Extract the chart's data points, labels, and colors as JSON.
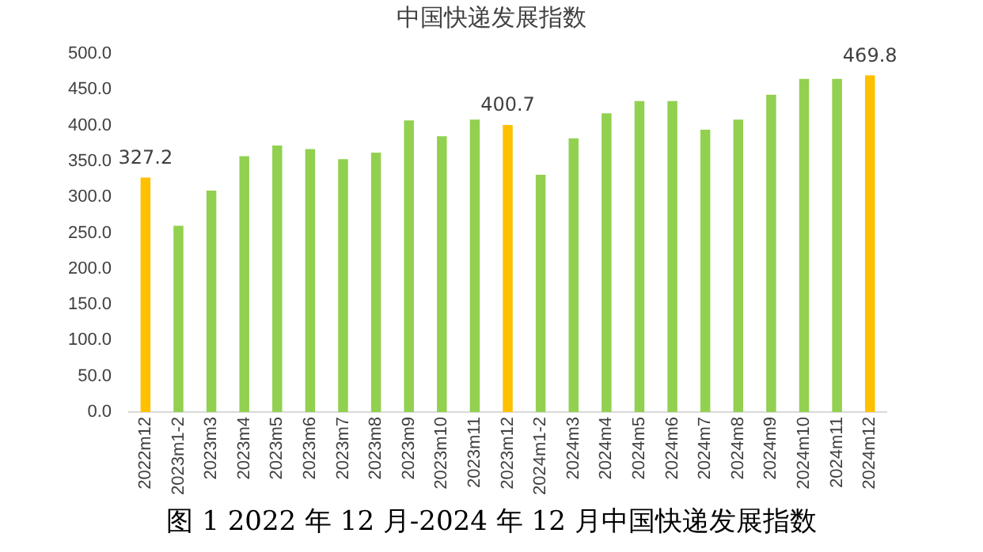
{
  "chart_data": {
    "type": "bar",
    "title": "中国快递发展指数",
    "categories": [
      "2022m12",
      "2023m1-2",
      "2023m3",
      "2023m4",
      "2023m5",
      "2023m6",
      "2023m7",
      "2023m8",
      "2023m9",
      "2023m10",
      "2023m11",
      "2023m12",
      "2024m1-2",
      "2024m3",
      "2024m4",
      "2024m5",
      "2024m6",
      "2024m7",
      "2024m8",
      "2024m9",
      "2024m10",
      "2024m11",
      "2024m12"
    ],
    "values": [
      327.2,
      260,
      309,
      357,
      372,
      367,
      353,
      362,
      407,
      385,
      408,
      400.7,
      331,
      382,
      417,
      434,
      434,
      394,
      408,
      443,
      465,
      465,
      469.8
    ],
    "colors": [
      "#ffc000",
      "#92d050",
      "#92d050",
      "#92d050",
      "#92d050",
      "#92d050",
      "#92d050",
      "#92d050",
      "#92d050",
      "#92d050",
      "#92d050",
      "#ffc000",
      "#92d050",
      "#92d050",
      "#92d050",
      "#92d050",
      "#92d050",
      "#92d050",
      "#92d050",
      "#92d050",
      "#92d050",
      "#92d050",
      "#ffc000"
    ],
    "value_labels": [
      "327.2",
      null,
      null,
      null,
      null,
      null,
      null,
      null,
      null,
      null,
      null,
      "400.7",
      null,
      null,
      null,
      null,
      null,
      null,
      null,
      null,
      null,
      null,
      "469.8"
    ],
    "ylim": [
      0,
      500
    ],
    "yticks": [
      {
        "value": 0,
        "label": "0.0"
      },
      {
        "value": 50,
        "label": "50.0"
      },
      {
        "value": 100,
        "label": "100.0"
      },
      {
        "value": 150,
        "label": "150.0"
      },
      {
        "value": 200,
        "label": "200.0"
      },
      {
        "value": 250,
        "label": "250.0"
      },
      {
        "value": 300,
        "label": "300.0"
      },
      {
        "value": 350,
        "label": "350.0"
      },
      {
        "value": 400,
        "label": "400.0"
      },
      {
        "value": 450,
        "label": "450.0"
      },
      {
        "value": 500,
        "label": "500.0"
      }
    ],
    "grid": false,
    "legend": false,
    "annotations": [
      "图 1 2022 年 12 月-2024 年 12 月中国快递发展指数"
    ]
  }
}
